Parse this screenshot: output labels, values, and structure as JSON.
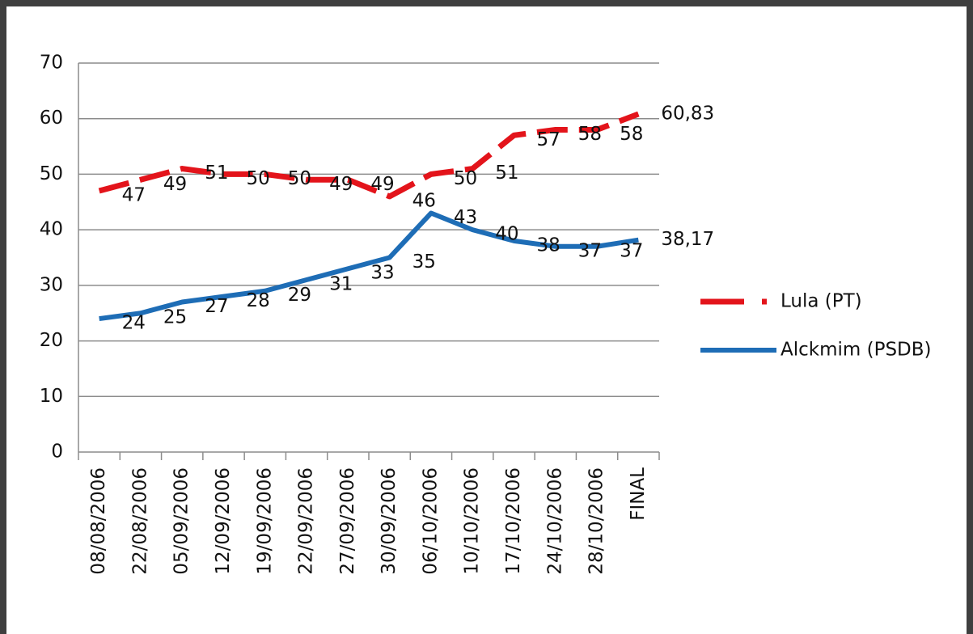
{
  "chart_data": {
    "type": "line",
    "categories": [
      "08/08/2006",
      "22/08/2006",
      "05/09/2006",
      "12/09/2006",
      "19/09/2006",
      "22/09/2006",
      "27/09/2006",
      "30/09/2006",
      "06/10/2006",
      "10/10/2006",
      "17/10/2006",
      "24/10/2006",
      "28/10/2006",
      "FINAL"
    ],
    "series": [
      {
        "name": "Lula (PT)",
        "color": "#e3141b",
        "dashed": true,
        "values": [
          47,
          49,
          51,
          50,
          50,
          49,
          49,
          46,
          50,
          51,
          57,
          58,
          58,
          60.83
        ],
        "value_labels": [
          "47",
          "49",
          "51",
          "50",
          "50",
          "49",
          "49",
          "46",
          "50",
          "51",
          "57",
          "58",
          "58",
          "60,83"
        ]
      },
      {
        "name": "Alckmim (PSDB)",
        "color": "#1e6db6",
        "dashed": false,
        "values": [
          24,
          25,
          27,
          28,
          29,
          31,
          33,
          35,
          43,
          40,
          38,
          37,
          37,
          38.17
        ],
        "value_labels": [
          "24",
          "25",
          "27",
          "28",
          "29",
          "31",
          "33",
          "35",
          "43",
          "40",
          "38",
          "37",
          "37",
          "38,17"
        ]
      }
    ],
    "ylim": [
      0,
      70
    ],
    "yticks": [
      0,
      10,
      20,
      30,
      40,
      50,
      60,
      70
    ],
    "grid": true,
    "legend": "right"
  }
}
